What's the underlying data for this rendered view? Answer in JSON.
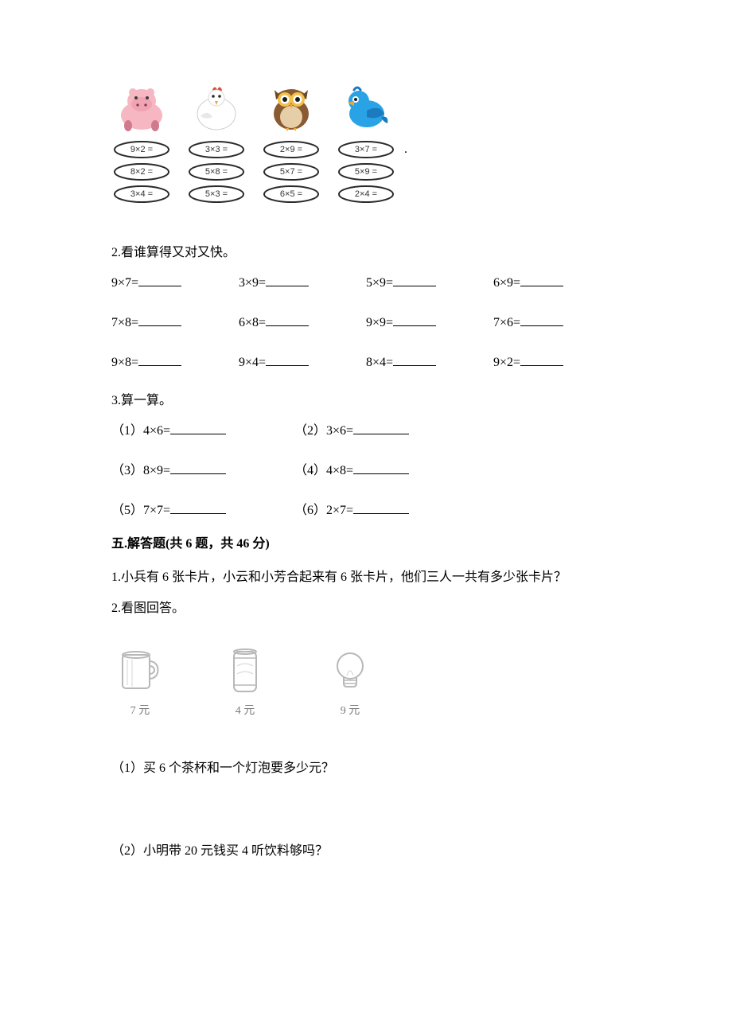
{
  "colors": {
    "text": "#000000",
    "background": "#ffffff",
    "gray_line": "#7a7a7a",
    "egg_stroke": "#2a2a2a",
    "egg_fill": "#ffffff",
    "hippo_body": "#f6b7c3",
    "hippo_dark": "#d07a8e",
    "chicken_body": "#ffffff",
    "chicken_shadow": "#d9d9d9",
    "chicken_comb": "#e04a3a",
    "chicken_beak": "#f2a63a",
    "owl_body": "#8a5a32",
    "owl_belly": "#e6cfa8",
    "owl_eye_rim": "#f2c14a",
    "owl_pupil": "#1a1a1a",
    "owl_beak": "#f2a63a",
    "bird_body": "#2aa3e6",
    "bird_dark": "#1c7bbf",
    "bird_beak": "#f2a63a",
    "mug_line": "#b8b8b8",
    "can_line": "#b8b8b8",
    "bulb_line": "#b8b8b8"
  },
  "eggs": {
    "rows": [
      [
        "9×2 =",
        "3×3 =",
        "2×9 =",
        "3×7 ="
      ],
      [
        "8×2 =",
        "5×8 =",
        "5×7 =",
        "5×9 ="
      ],
      [
        "3×4 =",
        "5×3 =",
        "6×5 =",
        "2×4 ="
      ]
    ],
    "trailing_dot_row": 0
  },
  "q2": {
    "title": "2.看谁算得又对又快。",
    "rows": [
      [
        "9×7=",
        "3×9=",
        "5×9=",
        "6×9="
      ],
      [
        "7×8=",
        "6×8=",
        "9×9=",
        "7×6="
      ],
      [
        "9×8=",
        "9×4=",
        "8×4=",
        "9×2="
      ]
    ]
  },
  "q3": {
    "title": "3.算一算。",
    "items": [
      [
        "（1）4×6=",
        "（2）3×6="
      ],
      [
        "（3）8×9=",
        "（4）4×8="
      ],
      [
        "（5）7×7=",
        "（6）2×7="
      ]
    ]
  },
  "section5": {
    "title": "五.解答题(共 6 题，共 46 分)",
    "q1": "1.小兵有 6 张卡片，小云和小芳合起来有 6 张卡片，他们三人一共有多少张卡片？",
    "q2_title": "2.看图回答。",
    "prices": [
      {
        "label": "7 元",
        "item": "mug"
      },
      {
        "label": "4 元",
        "item": "can"
      },
      {
        "label": "9 元",
        "item": "bulb"
      }
    ],
    "sub1": "（1）买 6 个茶杯和一个灯泡要多少元？",
    "sub2": "（2）小明带 20 元钱买 4 听饮料够吗？"
  }
}
